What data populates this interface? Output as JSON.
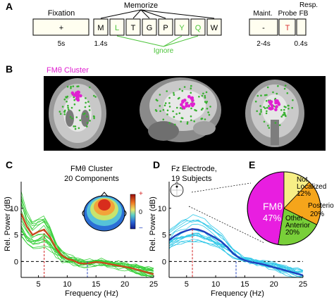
{
  "panels": {
    "a": "A",
    "b": "B",
    "c": "C",
    "d": "D",
    "e": "E"
  },
  "timeline": {
    "memorize_label": "Memorize",
    "ignore_label": "Ignore",
    "fixation_label": "Fixation",
    "fixation_symbol": "+",
    "fixation_duration": "5s",
    "letter_duration": "1.4s",
    "maint_label": "Maint.",
    "maint_symbol": "-",
    "maint_duration": "2-4s",
    "probe_label": "Probe",
    "resp_label": "Resp.",
    "fb_label": "FB",
    "probe_fb_duration": "0.4s",
    "letters": [
      {
        "text": "M",
        "color": "#000000"
      },
      {
        "text": "L",
        "color": "#4cc43a"
      },
      {
        "text": "T",
        "color": "#000000"
      },
      {
        "text": "G",
        "color": "#000000"
      },
      {
        "text": "P",
        "color": "#000000"
      },
      {
        "text": "Y",
        "color": "#4cc43a"
      },
      {
        "text": "Q",
        "color": "#4cc43a"
      },
      {
        "text": "W",
        "color": "#000000"
      }
    ],
    "probe_letter": {
      "text": "T",
      "color": "#d93030"
    }
  },
  "brain": {
    "title": "FMθ Cluster",
    "cluster_color": "#e020d0",
    "dipole_color": "#38b030"
  },
  "chart_c": {
    "title_line1": "FMθ Cluster",
    "title_line2": "20 Components",
    "colorbar": {
      "plus": "+",
      "zero": "0",
      "minus": "−"
    },
    "ylabel": "Rel. Power (dB)",
    "xlabel": "Frequency (Hz)"
  },
  "chart_d": {
    "title_line1": "Fz Electrode,",
    "title_line2": "19 Subjects",
    "ylabel": "Rel. Power (dB)",
    "xlabel": "Frequency (Hz)"
  },
  "pie": {
    "slices": [
      {
        "label": "FMθ",
        "pct": "47%",
        "value": 47,
        "color": "#e81ee0"
      },
      {
        "label": "Not Localized",
        "pct": "12%",
        "value": 12,
        "color": "#f7ef86"
      },
      {
        "label": "Posterior",
        "pct": "20%",
        "value": 20,
        "color": "#f5a51b"
      },
      {
        "label": "Other Anterior",
        "pct": "20%",
        "value": 20,
        "color": "#79cf39"
      }
    ]
  },
  "chart_data": [
    {
      "type": "line",
      "title": "FMθ Cluster 20 Components",
      "xlabel": "Frequency (Hz)",
      "ylabel": "Rel. Power (dB)",
      "xlim": [
        2,
        25
      ],
      "ylim": [
        -3,
        15
      ],
      "xticks": [
        "5",
        "10",
        "15",
        "20",
        "25"
      ],
      "yticks": [
        "0",
        "5",
        "10"
      ],
      "series": [
        {
          "color": "#c84a1c",
          "x": [
            2,
            3,
            4,
            5,
            6,
            7,
            8,
            9,
            10,
            11,
            12,
            13,
            14,
            15,
            16,
            17,
            18,
            19,
            20,
            21,
            22,
            23,
            24,
            25
          ],
          "y": [
            9.0,
            6.5,
            5.0,
            5.6,
            6.0,
            4.6,
            2.6,
            1.2,
            0.5,
            0.2,
            -0.3,
            -0.4,
            -0.3,
            -0.1,
            -0.2,
            -0.4,
            -0.6,
            -0.8,
            -1.0,
            -1.2,
            -1.5,
            -1.8,
            -2.1,
            -2.4
          ]
        }
      ],
      "peak_marker_x": 6,
      "secondary_marker_x": 13.5,
      "grid": false
    },
    {
      "type": "line",
      "title": "Fz Electrode, 19 Subjects",
      "xlabel": "Frequency (Hz)",
      "ylabel": "Rel. Power (dB)",
      "xlim": [
        2,
        25
      ],
      "ylim": [
        -3,
        15
      ],
      "xticks": [
        "5",
        "10",
        "15",
        "20",
        "25"
      ],
      "yticks": [
        "0",
        "5",
        "10"
      ],
      "series": [
        {
          "color": "#1e3fbf",
          "x": [
            2,
            3,
            4,
            5,
            6,
            7,
            8,
            9,
            10,
            11,
            12,
            13,
            14,
            15,
            16,
            17,
            18,
            19,
            20,
            21,
            22,
            23,
            24,
            25
          ],
          "y": [
            4.0,
            4.8,
            5.4,
            5.8,
            6.1,
            6.0,
            5.6,
            5.0,
            4.4,
            3.7,
            2.7,
            1.5,
            0.7,
            0.2,
            -0.1,
            -0.3,
            -0.5,
            -0.8,
            -1.1,
            -1.4,
            -1.7,
            -2.0,
            -2.3,
            -2.6
          ]
        }
      ],
      "peak_marker_x": 6,
      "secondary_marker_x": 13.5,
      "grid": false
    },
    {
      "type": "pie",
      "labels": [
        "FMθ",
        "Not Localized",
        "Posterior",
        "Other Anterior"
      ],
      "values": [
        47,
        12,
        20,
        20
      ]
    }
  ]
}
